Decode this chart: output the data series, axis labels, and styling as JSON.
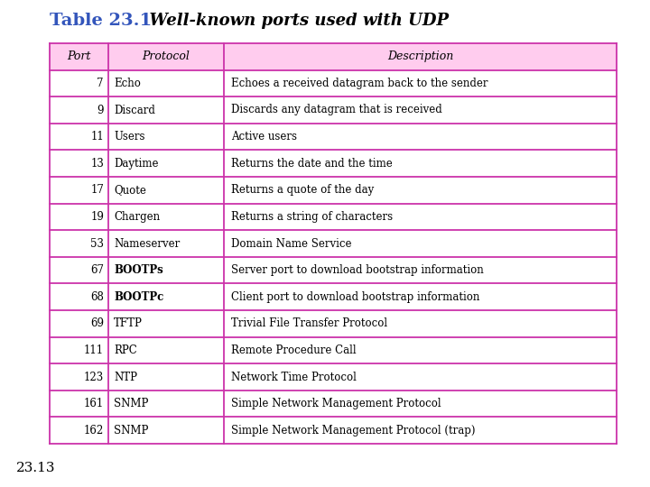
{
  "title_part1": "Table 23.1",
  "title_part2": "  Well-known ports used with UDP",
  "title_color1": "#3355bb",
  "title_color2": "#000000",
  "footer": "23.13",
  "headers": [
    "Port",
    "Protocol",
    "Description"
  ],
  "rows": [
    [
      "7",
      "Echo",
      "Echoes a received datagram back to the sender"
    ],
    [
      "9",
      "Discard",
      "Discards any datagram that is received"
    ],
    [
      "11",
      "Users",
      "Active users"
    ],
    [
      "13",
      "Daytime",
      "Returns the date and the time"
    ],
    [
      "17",
      "Quote",
      "Returns a quote of the day"
    ],
    [
      "19",
      "Chargen",
      "Returns a string of characters"
    ],
    [
      "53",
      "Nameserver",
      "Domain Name Service"
    ],
    [
      "67",
      "BOOTPs",
      "Server port to download bootstrap information"
    ],
    [
      "68",
      "BOOTPc",
      "Client port to download bootstrap information"
    ],
    [
      "69",
      "TFTP",
      "Trivial File Transfer Protocol"
    ],
    [
      "111",
      "RPC",
      "Remote Procedure Call"
    ],
    [
      "123",
      "NTP",
      "Network Time Protocol"
    ],
    [
      "161",
      "SNMP",
      "Simple Network Management Protocol"
    ],
    [
      "162",
      "SNMP",
      "Simple Network Management Protocol (trap)"
    ]
  ],
  "header_bg": "#ffccee",
  "border_color": "#cc33aa",
  "bg_color": "#ffffff",
  "title_fontsize": 14,
  "subtitle_fontsize": 13,
  "header_fontsize": 9,
  "data_fontsize": 8.5,
  "footer_fontsize": 11
}
